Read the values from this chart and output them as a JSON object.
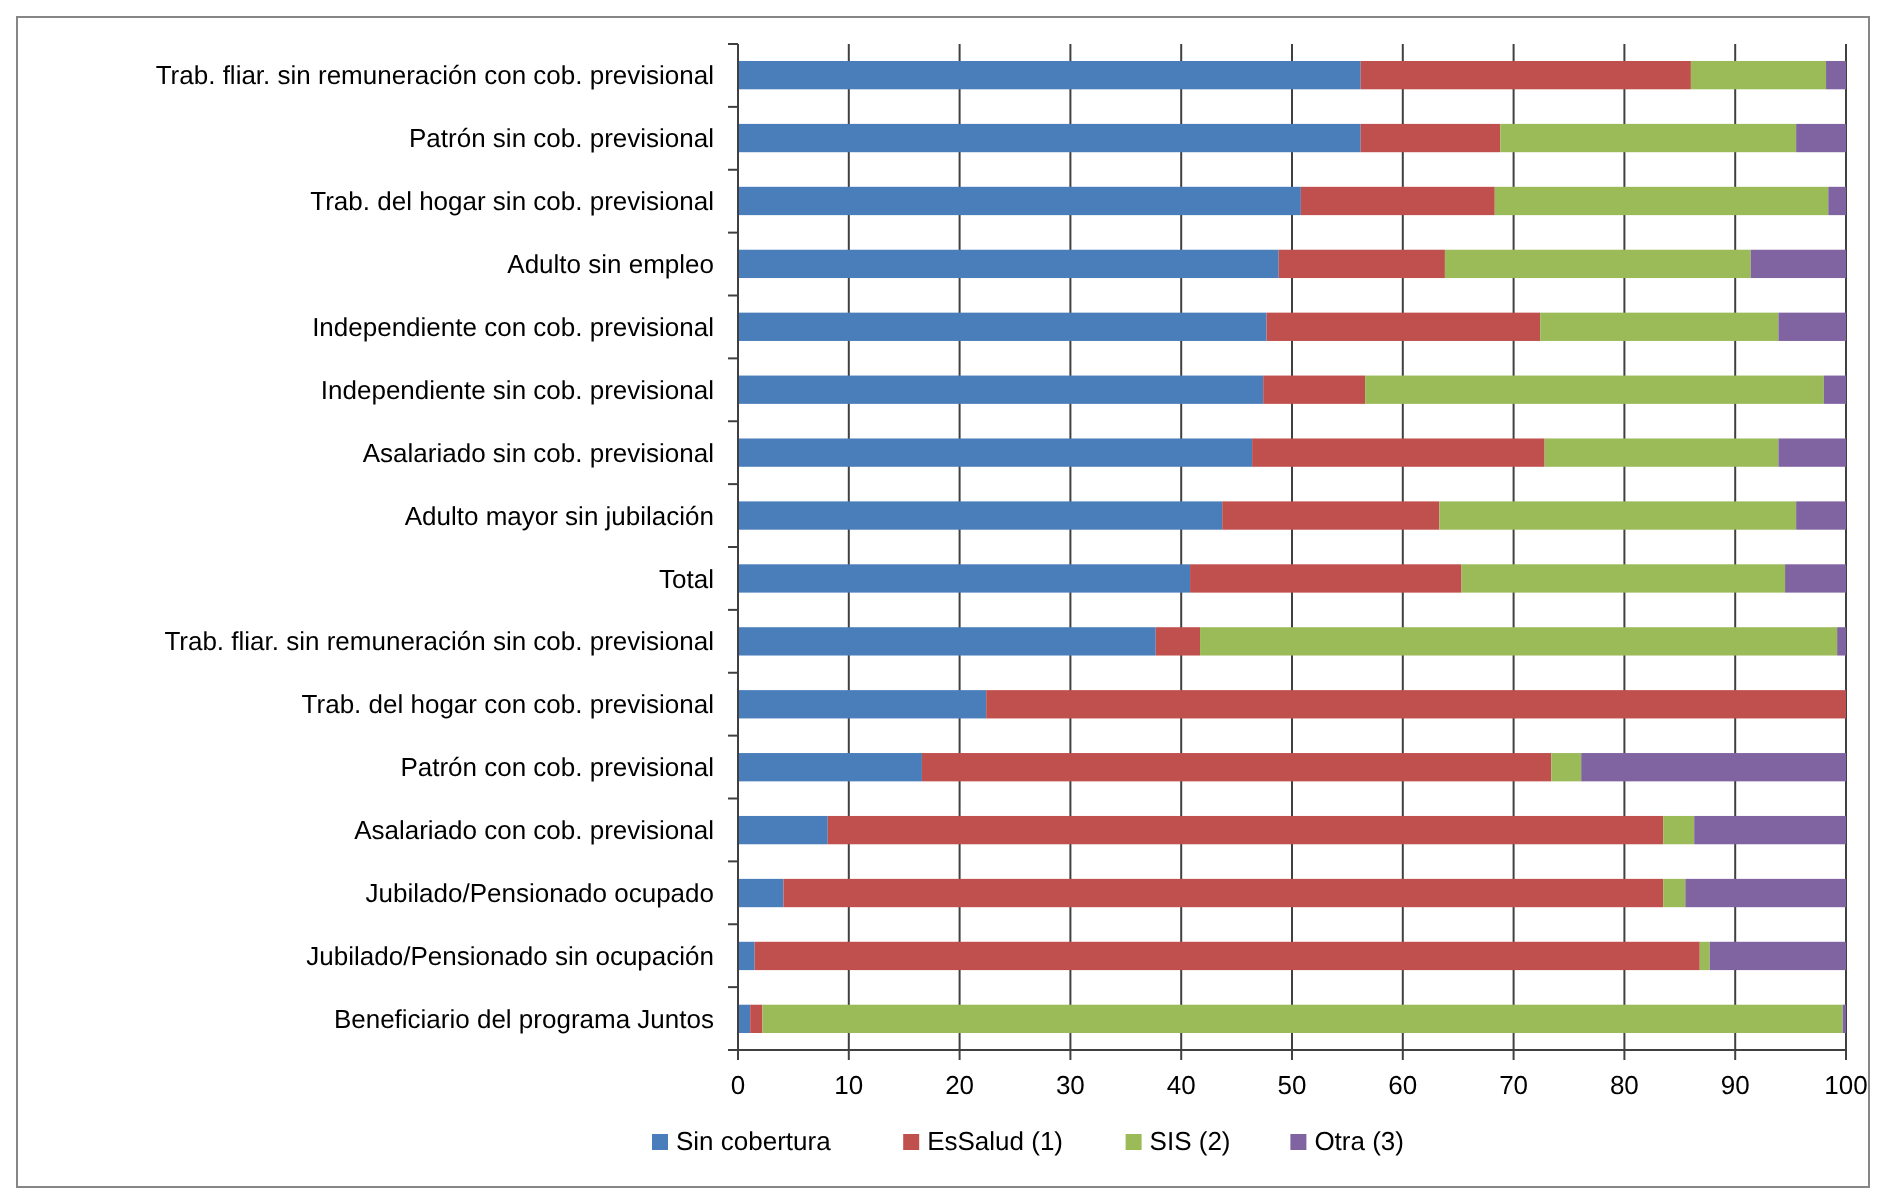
{
  "chart_data": {
    "type": "bar",
    "orientation": "horizontal",
    "stacked": true,
    "categories": [
      "Trab. fliar. sin remuneración con cob. previsional",
      "Patrón sin cob. previsional",
      "Trab. del hogar sin cob. previsional",
      "Adulto sin empleo",
      "Independiente con cob. previsional",
      "Independiente sin cob. previsional",
      "Asalariado sin cob. previsional",
      "Adulto mayor sin jubilación",
      "Total",
      "Trab. fliar. sin remuneración sin cob. previsional",
      "Trab. del hogar con cob. previsional",
      "Patrón con cob. previsional",
      "Asalariado con cob. previsional",
      "Jubilado/Pensionado ocupado",
      "Jubilado/Pensionado sin ocupación",
      "Beneficiario del programa Juntos"
    ],
    "series": [
      {
        "name": "Sin cobertura",
        "color": "#4a7ebb",
        "values": [
          56.2,
          56.2,
          50.8,
          48.8,
          47.7,
          47.4,
          46.4,
          43.7,
          40.8,
          37.7,
          22.4,
          16.6,
          8.1,
          4.1,
          1.5,
          1.1
        ]
      },
      {
        "name": "EsSalud (1)",
        "color": "#c0504d",
        "values": [
          29.8,
          12.6,
          17.5,
          15.0,
          24.7,
          9.2,
          26.4,
          19.6,
          24.5,
          4.0,
          77.6,
          56.8,
          75.4,
          79.4,
          85.3,
          1.1
        ]
      },
      {
        "name": "SIS (2)",
        "color": "#9bbb59",
        "values": [
          12.2,
          26.7,
          30.1,
          27.6,
          21.5,
          41.4,
          21.1,
          32.2,
          29.2,
          57.5,
          0,
          2.7,
          2.8,
          2.0,
          0.9,
          97.5
        ]
      },
      {
        "name": "Otra (3)",
        "color": "#8064a2",
        "values": [
          1.8,
          4.5,
          1.6,
          8.6,
          6.1,
          2.0,
          6.1,
          4.5,
          5.5,
          0.8,
          0,
          23.9,
          13.7,
          14.5,
          12.3,
          0.3
        ]
      }
    ],
    "xlim": [
      0,
      100
    ],
    "xticks": [
      0,
      10,
      20,
      30,
      40,
      50,
      60,
      70,
      80,
      90,
      100
    ],
    "grid": "x",
    "legend": "bottom"
  }
}
